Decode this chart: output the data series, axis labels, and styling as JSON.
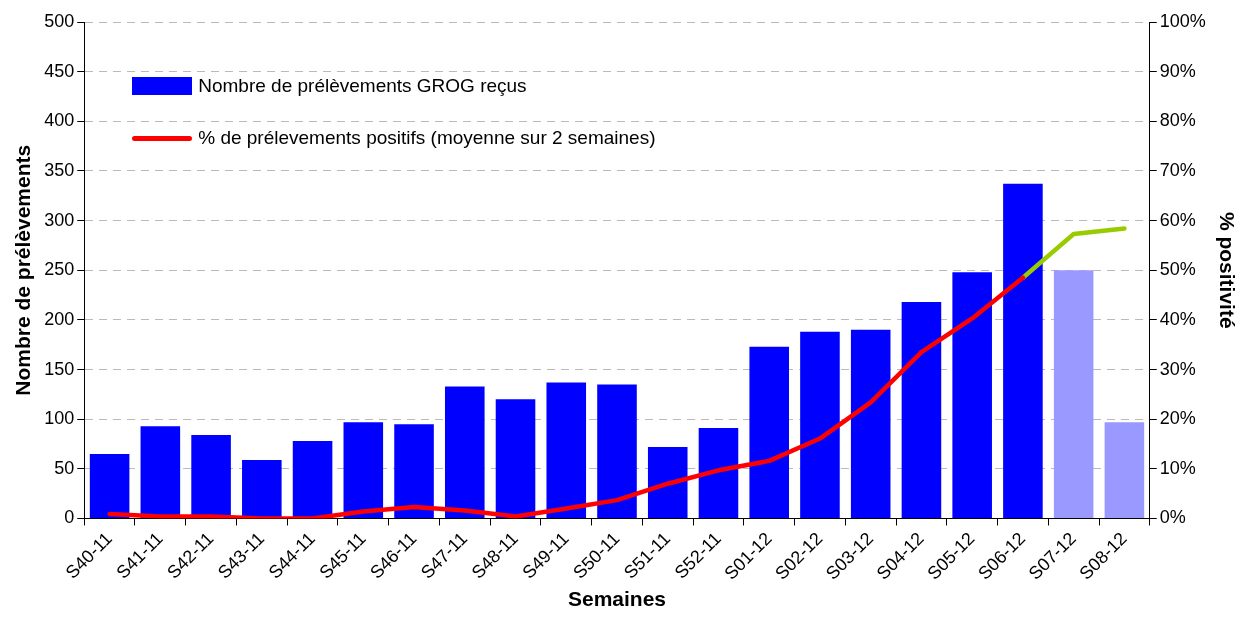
{
  "chart_data": {
    "type": "bar",
    "xlabel": "Semaines",
    "ylabel": "Nombre de prélèvements",
    "y2label": "% positivité",
    "categories": [
      "S40-11",
      "S41-11",
      "S42-11",
      "S43-11",
      "S44-11",
      "S45-11",
      "S46-11",
      "S47-11",
      "S48-11",
      "S49-11",
      "S50-11",
      "S51-11",
      "S52-11",
      "S01-12",
      "S02-12",
      "S03-12",
      "S04-12",
      "S05-12",
      "S06-12",
      "S07-12",
      "S08-12"
    ],
    "series": [
      {
        "name": "Nombre de prélèvements GROG reçus",
        "color": "#0000ff",
        "colors": [
          "#0000ff",
          "#0000ff",
          "#0000ff",
          "#0000ff",
          "#0000ff",
          "#0000ff",
          "#0000ff",
          "#0000ff",
          "#0000ff",
          "#0000ff",
          "#0000ff",
          "#0000ff",
          "#0000ff",
          "#0000ff",
          "#0000ff",
          "#0000ff",
          "#0000ff",
          "#0000ff",
          "#0000ff",
          "#9999ff",
          "#9999ff"
        ],
        "values": [
          65,
          93,
          84,
          59,
          78,
          97,
          95,
          133,
          120,
          137,
          135,
          72,
          91,
          173,
          188,
          190,
          218,
          248,
          337,
          250,
          97
        ]
      },
      {
        "name": "% de prélevements positifs (moyenne sur 2 semaines)",
        "type": "line",
        "axis": "y2",
        "color": "#ff0000",
        "values": [
          0.9,
          0.4,
          0.4,
          0,
          0,
          1.4,
          2.3,
          1.6,
          0.4,
          2.0,
          3.7,
          7.0,
          9.7,
          11.6,
          16.1,
          23.4,
          33.5,
          40.3,
          48.5,
          null,
          null
        ]
      },
      {
        "type": "line",
        "axis": "y2",
        "color": "#99cc00",
        "values": [
          null,
          null,
          null,
          null,
          null,
          null,
          null,
          null,
          null,
          null,
          null,
          null,
          null,
          null,
          null,
          null,
          null,
          null,
          48.5,
          57.3,
          58.4
        ]
      }
    ],
    "ylim": [
      0,
      500
    ],
    "yticks": [
      0,
      50,
      100,
      150,
      200,
      250,
      300,
      350,
      400,
      450,
      500
    ],
    "y2lim": [
      0,
      100
    ],
    "y2ticks": [
      {
        "value": 0,
        "label": "0%"
      },
      {
        "value": 10,
        "label": "10%"
      },
      {
        "value": 20,
        "label": "20%"
      },
      {
        "value": 30,
        "label": "30%"
      },
      {
        "value": 40,
        "label": "40%"
      },
      {
        "value": 50,
        "label": "50%"
      },
      {
        "value": 60,
        "label": "60%"
      },
      {
        "value": 70,
        "label": "70%"
      },
      {
        "value": 80,
        "label": "80%"
      },
      {
        "value": 90,
        "label": "90%"
      },
      {
        "value": 100,
        "label": "100%"
      }
    ],
    "grid": "y",
    "legend": "top left",
    "marker": "none",
    "line_style": "solid"
  }
}
